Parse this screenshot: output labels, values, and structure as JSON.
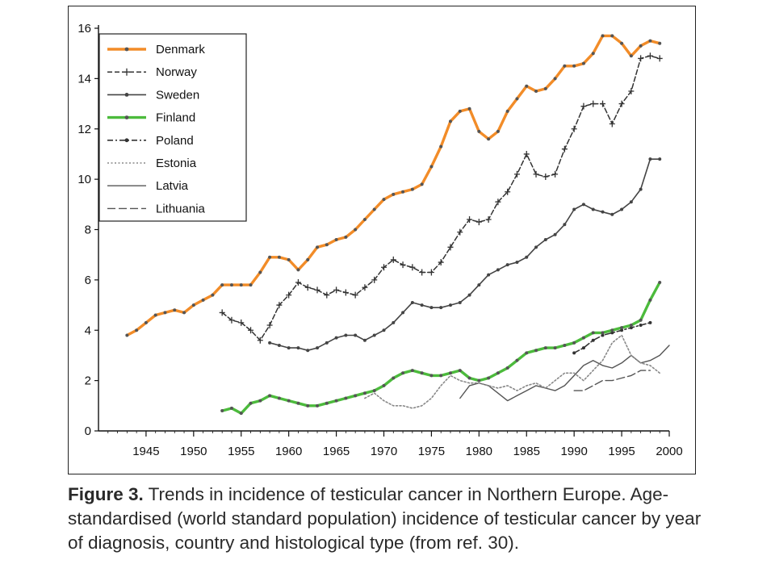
{
  "caption": {
    "label": "Figure 3.",
    "text": " Trends in incidence of testicular cancer in Northern Europe. Age-standardised (world standard population) incidence of testicular cancer by year of diagnosis, country and histological type (from ref. 30)."
  },
  "chart_data": {
    "type": "line",
    "title": "",
    "xlabel": "",
    "ylabel": "",
    "xlim": [
      1940,
      2000
    ],
    "ylim": [
      0,
      16
    ],
    "x_ticks": [
      1945,
      1950,
      1955,
      1960,
      1965,
      1970,
      1975,
      1980,
      1985,
      1990,
      1995,
      2000
    ],
    "x_tick_labels": [
      "1945",
      "1950",
      "1955",
      "1960",
      "1965",
      "1970",
      "1975",
      "1980",
      "1985",
      "1990",
      "1995",
      "2000"
    ],
    "y_ticks": [
      0,
      2,
      4,
      6,
      8,
      10,
      12,
      14,
      16
    ],
    "y_tick_labels": [
      "0",
      "2",
      "4",
      "6",
      "8",
      "10",
      "12",
      "14",
      "16"
    ],
    "grid": false,
    "legend_position": "top-left",
    "series": [
      {
        "name": "Denmark",
        "color": "#f28c28",
        "style": "thick",
        "marker": "dot",
        "x": [
          1943,
          1944,
          1945,
          1946,
          1947,
          1948,
          1949,
          1950,
          1951,
          1952,
          1953,
          1954,
          1955,
          1956,
          1957,
          1958,
          1959,
          1960,
          1961,
          1962,
          1963,
          1964,
          1965,
          1966,
          1967,
          1968,
          1969,
          1970,
          1971,
          1972,
          1973,
          1974,
          1975,
          1976,
          1977,
          1978,
          1979,
          1980,
          1981,
          1982,
          1983,
          1984,
          1985,
          1986,
          1987,
          1988,
          1989,
          1990,
          1991,
          1992,
          1993,
          1994,
          1995,
          1996,
          1997,
          1998,
          1999
        ],
        "y": [
          3.8,
          4.0,
          4.3,
          4.6,
          4.7,
          4.8,
          4.7,
          5.0,
          5.2,
          5.4,
          5.8,
          5.8,
          5.8,
          5.8,
          6.3,
          6.9,
          6.9,
          6.8,
          6.4,
          6.8,
          7.3,
          7.4,
          7.6,
          7.7,
          8.0,
          8.4,
          8.8,
          9.2,
          9.4,
          9.5,
          9.6,
          9.8,
          10.5,
          11.3,
          12.3,
          12.7,
          12.8,
          11.9,
          11.6,
          11.9,
          12.7,
          13.2,
          13.7,
          13.5,
          13.6,
          14.0,
          14.5,
          14.5,
          14.6,
          15.0,
          15.7,
          15.7,
          15.4,
          14.9,
          15.3,
          15.5,
          15.4
        ]
      },
      {
        "name": "Norway",
        "color": "#333333",
        "style": "dash-cross",
        "marker": "cross",
        "x": [
          1953,
          1954,
          1955,
          1956,
          1957,
          1958,
          1959,
          1960,
          1961,
          1962,
          1963,
          1964,
          1965,
          1966,
          1967,
          1968,
          1969,
          1970,
          1971,
          1972,
          1973,
          1974,
          1975,
          1976,
          1977,
          1978,
          1979,
          1980,
          1981,
          1982,
          1983,
          1984,
          1985,
          1986,
          1987,
          1988,
          1989,
          1990,
          1991,
          1992,
          1993,
          1994,
          1995,
          1996,
          1997,
          1998,
          1999
        ],
        "y": [
          4.7,
          4.4,
          4.3,
          4.0,
          3.6,
          4.2,
          5.0,
          5.4,
          5.9,
          5.7,
          5.6,
          5.4,
          5.6,
          5.5,
          5.4,
          5.7,
          6.0,
          6.5,
          6.8,
          6.6,
          6.5,
          6.3,
          6.3,
          6.7,
          7.3,
          7.9,
          8.4,
          8.3,
          8.4,
          9.1,
          9.5,
          10.2,
          11.0,
          10.2,
          10.1,
          10.2,
          11.2,
          12.0,
          12.9,
          13.0,
          13.0,
          12.2,
          13.0,
          13.5,
          14.8,
          14.9,
          14.8
        ]
      },
      {
        "name": "Sweden",
        "color": "#444444",
        "style": "solid-dot",
        "marker": "dot",
        "x": [
          1958,
          1959,
          1960,
          1961,
          1962,
          1963,
          1964,
          1965,
          1966,
          1967,
          1968,
          1969,
          1970,
          1971,
          1972,
          1973,
          1974,
          1975,
          1976,
          1977,
          1978,
          1979,
          1980,
          1981,
          1982,
          1983,
          1984,
          1985,
          1986,
          1987,
          1988,
          1989,
          1990,
          1991,
          1992,
          1993,
          1994,
          1995,
          1996,
          1997,
          1998,
          1999
        ],
        "y": [
          3.5,
          3.4,
          3.3,
          3.3,
          3.2,
          3.3,
          3.5,
          3.7,
          3.8,
          3.8,
          3.6,
          3.8,
          4.0,
          4.3,
          4.7,
          5.1,
          5.0,
          4.9,
          4.9,
          5.0,
          5.1,
          5.4,
          5.8,
          6.2,
          6.4,
          6.6,
          6.7,
          6.9,
          7.3,
          7.6,
          7.8,
          8.2,
          8.8,
          9.0,
          8.8,
          8.7,
          8.6,
          8.8,
          9.1,
          9.6,
          10.8,
          10.8
        ]
      },
      {
        "name": "Finland",
        "color": "#4cbb3c",
        "style": "thick",
        "marker": "dot",
        "x": [
          1953,
          1954,
          1955,
          1956,
          1957,
          1958,
          1959,
          1960,
          1961,
          1962,
          1963,
          1964,
          1965,
          1966,
          1967,
          1968,
          1969,
          1970,
          1971,
          1972,
          1973,
          1974,
          1975,
          1976,
          1977,
          1978,
          1979,
          1980,
          1981,
          1982,
          1983,
          1984,
          1985,
          1986,
          1987,
          1988,
          1989,
          1990,
          1991,
          1992,
          1993,
          1994,
          1995,
          1996,
          1997,
          1998,
          1999
        ],
        "y": [
          0.8,
          0.9,
          0.7,
          1.1,
          1.2,
          1.4,
          1.3,
          1.2,
          1.1,
          1.0,
          1.0,
          1.1,
          1.2,
          1.3,
          1.4,
          1.5,
          1.6,
          1.8,
          2.1,
          2.3,
          2.4,
          2.3,
          2.2,
          2.2,
          2.3,
          2.4,
          2.1,
          2.0,
          2.1,
          2.3,
          2.5,
          2.8,
          3.1,
          3.2,
          3.3,
          3.3,
          3.4,
          3.5,
          3.7,
          3.9,
          3.9,
          4.0,
          4.1,
          4.2,
          4.4,
          5.2,
          5.9
        ]
      },
      {
        "name": "Poland",
        "color": "#333333",
        "style": "dashdot",
        "marker": "dot",
        "x": [
          1990,
          1991,
          1992,
          1993,
          1994,
          1995,
          1996,
          1997,
          1998
        ],
        "y": [
          3.1,
          3.3,
          3.6,
          3.8,
          3.9,
          4.0,
          4.1,
          4.2,
          4.3
        ]
      },
      {
        "name": "Estonia",
        "color": "#888888",
        "style": "dotted",
        "marker": "none",
        "x": [
          1968,
          1969,
          1970,
          1971,
          1972,
          1973,
          1974,
          1975,
          1976,
          1977,
          1978,
          1979,
          1980,
          1981,
          1982,
          1983,
          1984,
          1985,
          1986,
          1987,
          1988,
          1989,
          1990,
          1991,
          1992,
          1993,
          1994,
          1995,
          1996,
          1997,
          1998,
          1999
        ],
        "y": [
          1.3,
          1.5,
          1.2,
          1.0,
          1.0,
          0.9,
          1.0,
          1.3,
          1.8,
          2.2,
          2.0,
          1.9,
          1.9,
          1.8,
          1.7,
          1.8,
          1.6,
          1.8,
          1.9,
          1.7,
          2.0,
          2.3,
          2.3,
          2.0,
          2.4,
          2.8,
          3.5,
          3.8,
          3.0,
          2.7,
          2.6,
          2.3
        ]
      },
      {
        "name": "Latvia",
        "color": "#555555",
        "style": "solid-thin",
        "marker": "none",
        "x": [
          1978,
          1979,
          1980,
          1981,
          1982,
          1983,
          1984,
          1985,
          1986,
          1987,
          1988,
          1989,
          1990,
          1991,
          1992,
          1993,
          1994,
          1995,
          1996,
          1997,
          1998,
          1999,
          2000
        ],
        "y": [
          1.3,
          1.8,
          1.9,
          1.8,
          1.5,
          1.2,
          1.4,
          1.6,
          1.8,
          1.7,
          1.6,
          1.8,
          2.2,
          2.6,
          2.8,
          2.6,
          2.5,
          2.7,
          3.0,
          2.7,
          2.8,
          3.0,
          3.4
        ]
      },
      {
        "name": "Lithuania",
        "color": "#555555",
        "style": "longdash",
        "marker": "none",
        "x": [
          1990,
          1991,
          1992,
          1993,
          1994,
          1995,
          1996,
          1997,
          1998
        ],
        "y": [
          1.6,
          1.6,
          1.8,
          2.0,
          2.0,
          2.1,
          2.2,
          2.4,
          2.4
        ]
      }
    ]
  }
}
